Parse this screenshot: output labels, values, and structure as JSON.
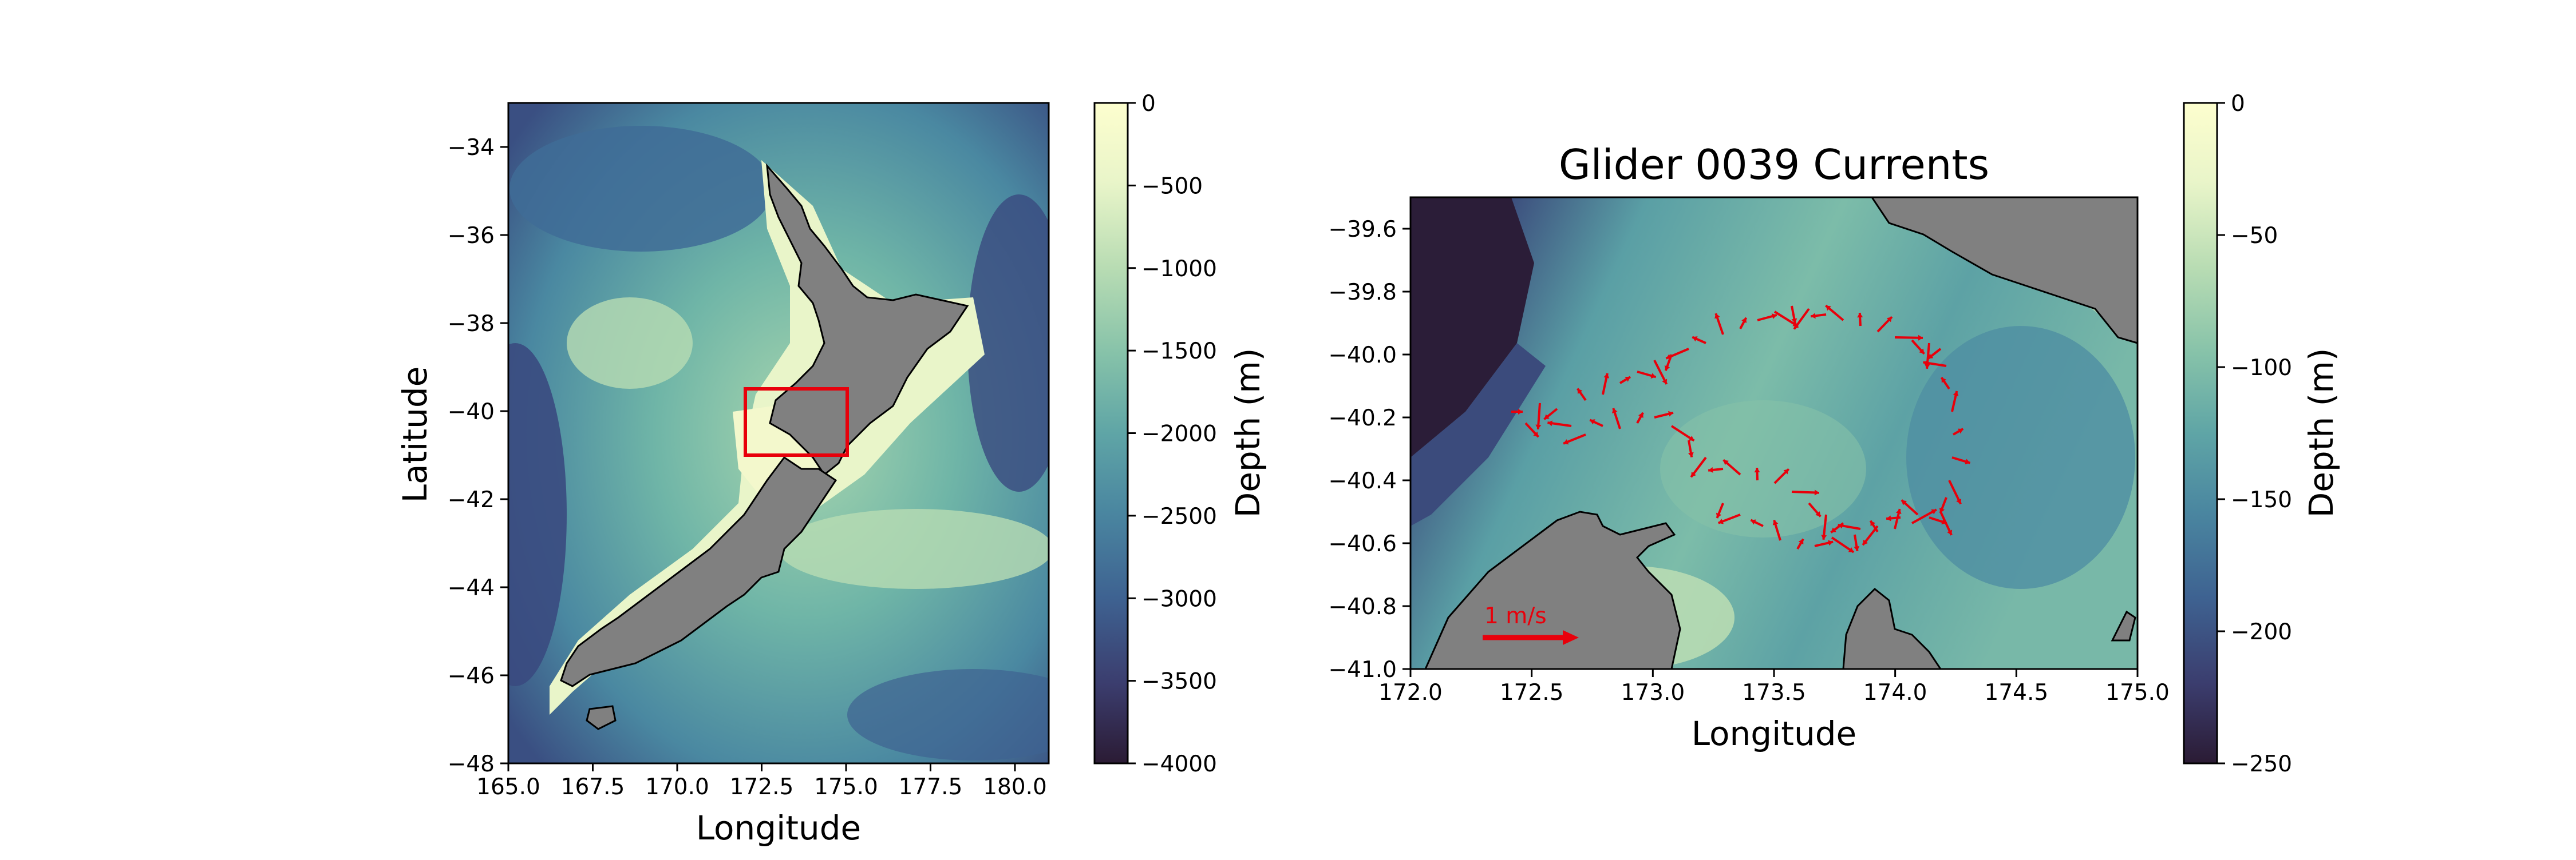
{
  "figure": {
    "left_map": {
      "xlabel": "Longitude",
      "ylabel": "Latitude",
      "x_ticks": [
        "165.0",
        "167.5",
        "170.0",
        "172.5",
        "175.0",
        "177.5",
        "180.0"
      ],
      "y_ticks": [
        "−34",
        "−36",
        "−38",
        "−40",
        "−42",
        "−44",
        "−46",
        "−48"
      ],
      "xlim": [
        165.0,
        181.0
      ],
      "ylim": [
        -48.0,
        -33.0
      ],
      "land_color": "#808080",
      "box_color": "#e8000b",
      "box": {
        "lon": [
          172.0,
          175.0
        ],
        "lat": [
          -41.0,
          -39.5
        ]
      },
      "colorbar": {
        "label": "Depth (m)",
        "ticks": [
          "0",
          "−500",
          "−1000",
          "−1500",
          "−2000",
          "−2500",
          "−3000",
          "−3500",
          "−4000"
        ],
        "range": [
          -4000,
          0
        ]
      }
    },
    "right_map": {
      "title": "Glider 0039 Currents",
      "xlabel": "Longitude",
      "x_ticks": [
        "172.0",
        "172.5",
        "173.0",
        "173.5",
        "174.0",
        "174.5",
        "175.0"
      ],
      "y_ticks": [
        "−39.6",
        "−39.8",
        "−40.0",
        "−40.2",
        "−40.4",
        "−40.6",
        "−40.8",
        "−41.0"
      ],
      "xlim": [
        172.0,
        175.0
      ],
      "ylim": [
        -41.0,
        -39.5
      ],
      "arrow_color": "#e8000b",
      "scale_arrow_label": "1 m/s",
      "colorbar": {
        "label": "Depth (m)",
        "ticks": [
          "0",
          "−50",
          "−100",
          "−150",
          "−200",
          "−250"
        ],
        "range": [
          -250,
          0
        ]
      }
    },
    "colormap": [
      "#2b1b34",
      "#3b3d6e",
      "#3e6291",
      "#4a86a0",
      "#5fa5a6",
      "#86c2a9",
      "#b8dcb3",
      "#e9f5c9",
      "#fdfece"
    ]
  }
}
